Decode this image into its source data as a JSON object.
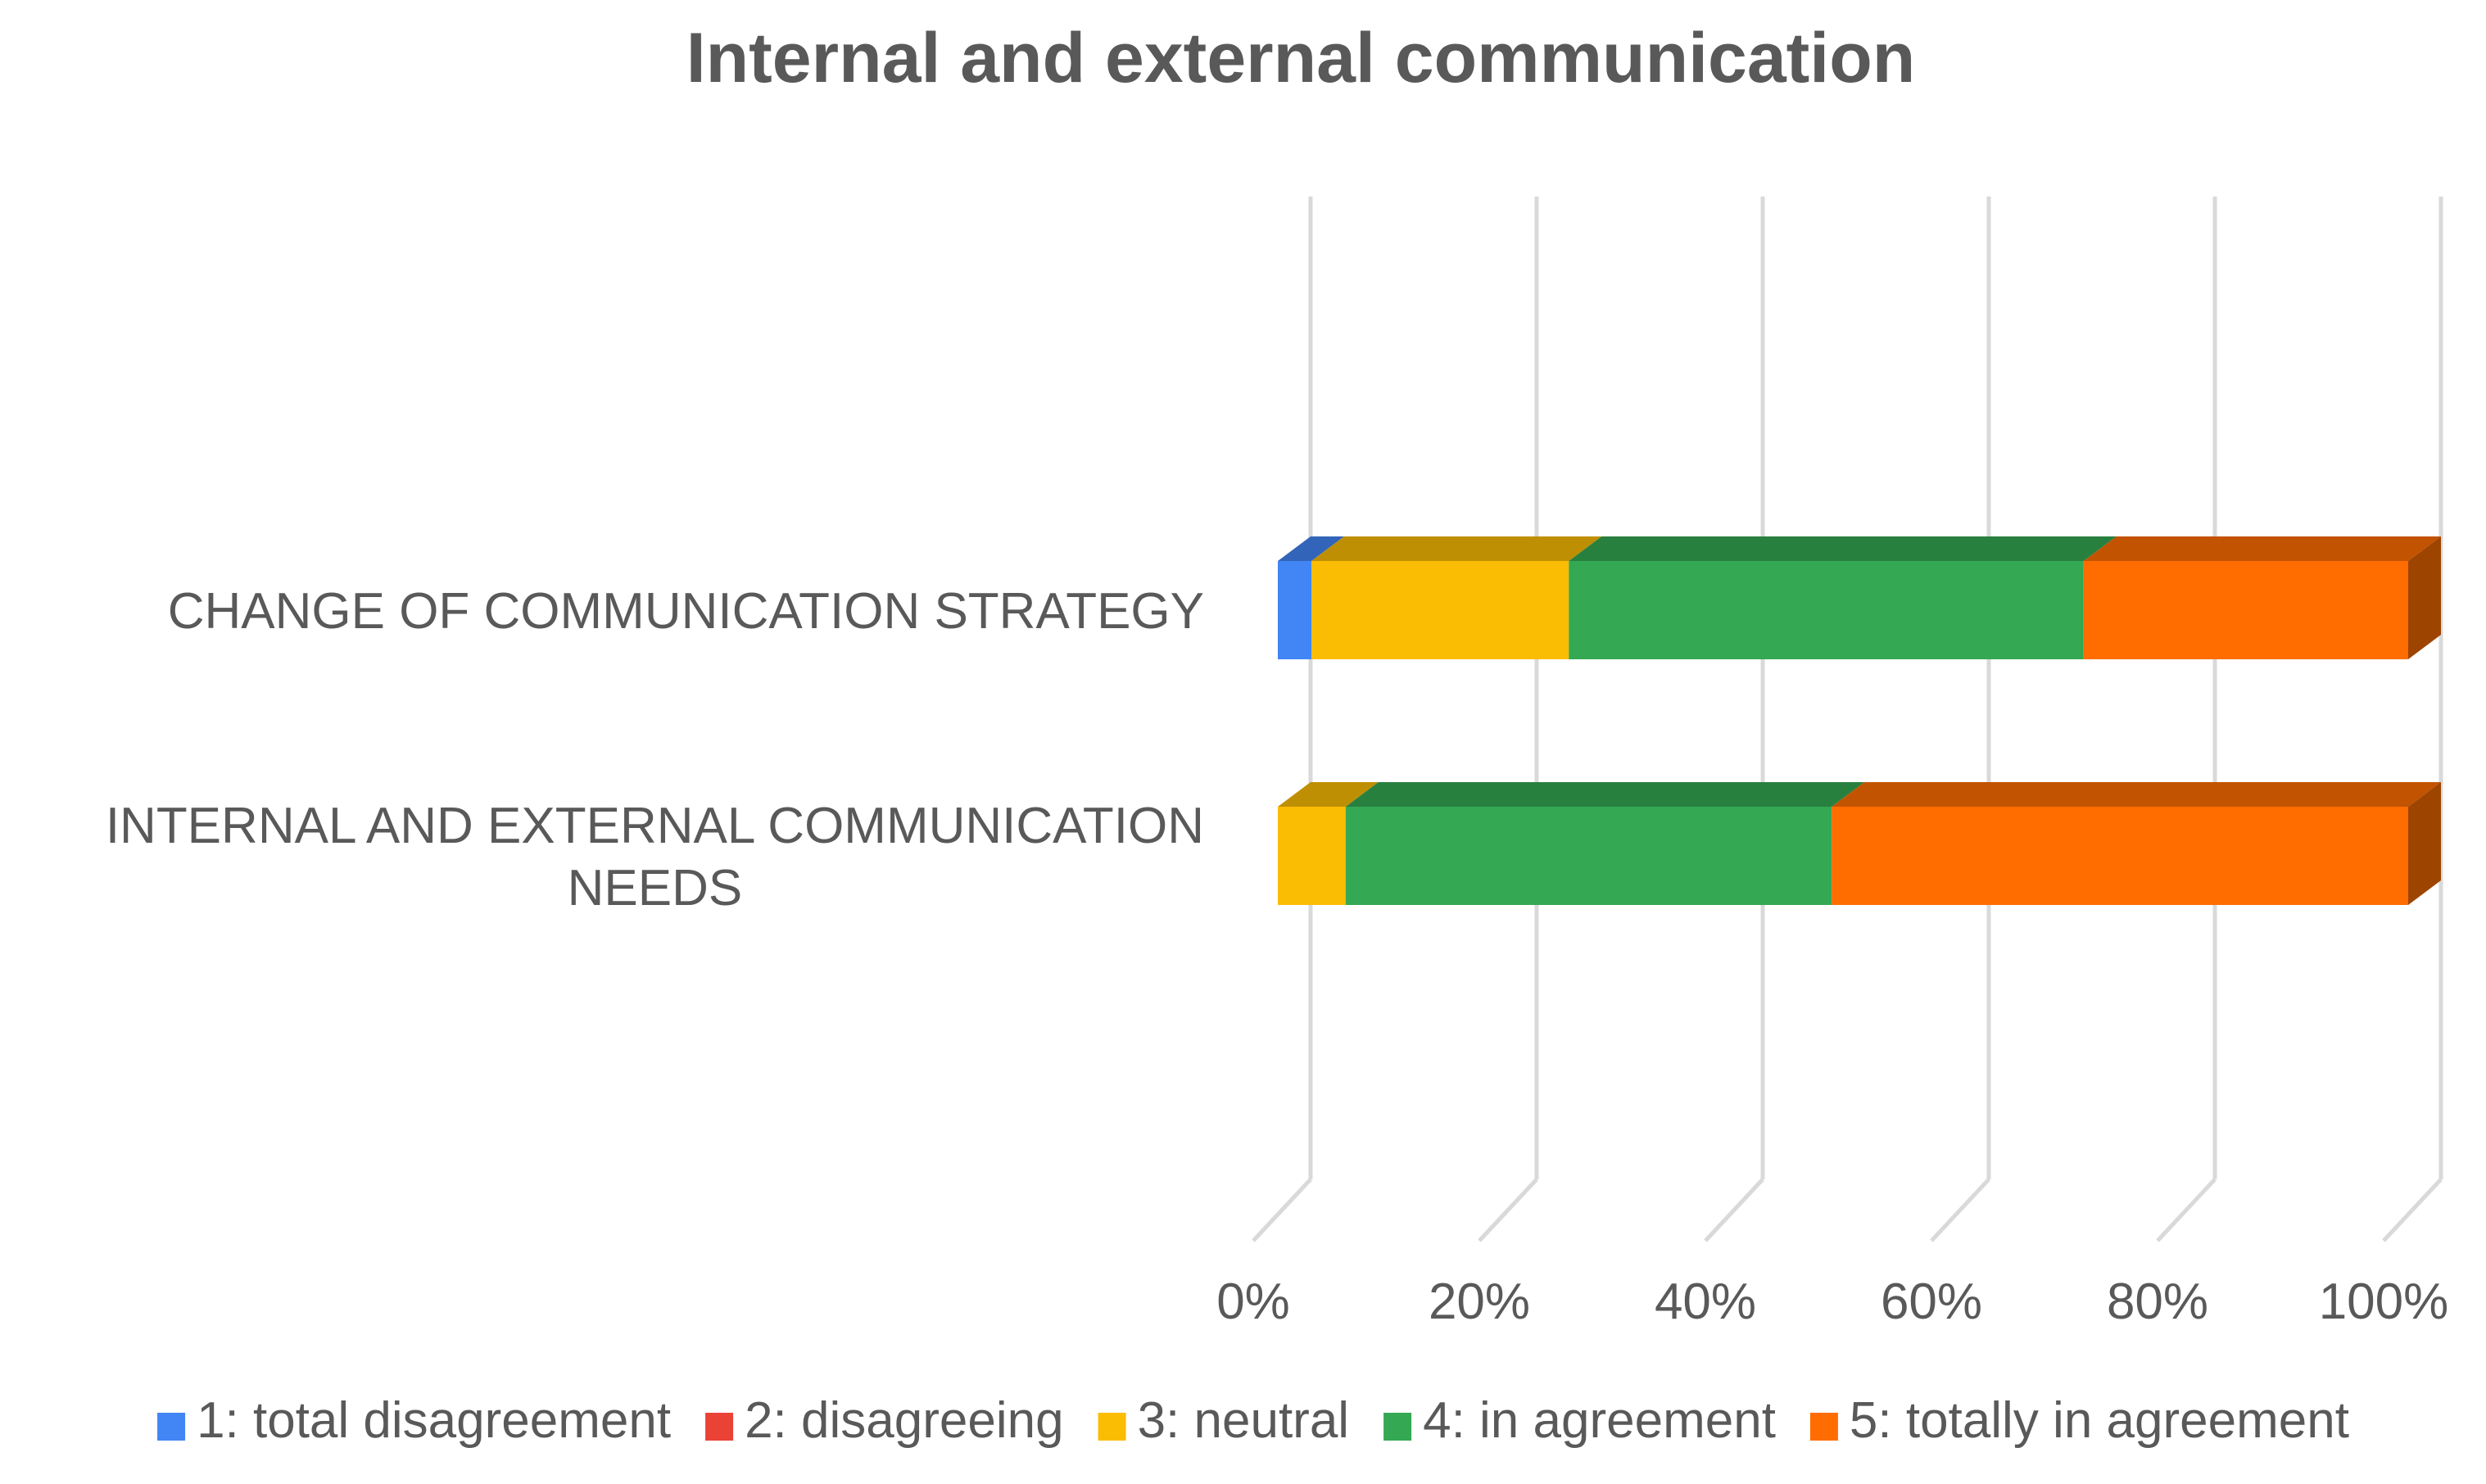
{
  "chart_data": {
    "type": "bar",
    "orientation": "horizontal",
    "stacked": "percent",
    "three_d": true,
    "title": "Internal and external communication",
    "categories": [
      "CHANGE OF COMMUNICATION STRATEGY",
      "INTERNAL AND EXTERNAL COMMUNICATION NEEDS"
    ],
    "series": [
      {
        "name": "1: total disagreement",
        "color": "#4285F4",
        "values": [
          3,
          0
        ]
      },
      {
        "name": "2: disagreeing",
        "color": "#EA4335",
        "values": [
          0,
          0
        ]
      },
      {
        "name": "3: neutral",
        "color": "#FBBC04",
        "values": [
          23,
          6
        ]
      },
      {
        "name": "4: in agreement",
        "color": "#34A853",
        "values": [
          46,
          43
        ]
      },
      {
        "name": "5: totally in agreement",
        "color": "#FF6D01",
        "values": [
          29,
          51
        ]
      }
    ],
    "xlim": [
      0,
      100
    ],
    "x_ticks": [
      "0%",
      "20%",
      "40%",
      "60%",
      "80%",
      "100%"
    ],
    "xlabel": "",
    "ylabel": "",
    "grid": true,
    "legend_position": "bottom"
  }
}
